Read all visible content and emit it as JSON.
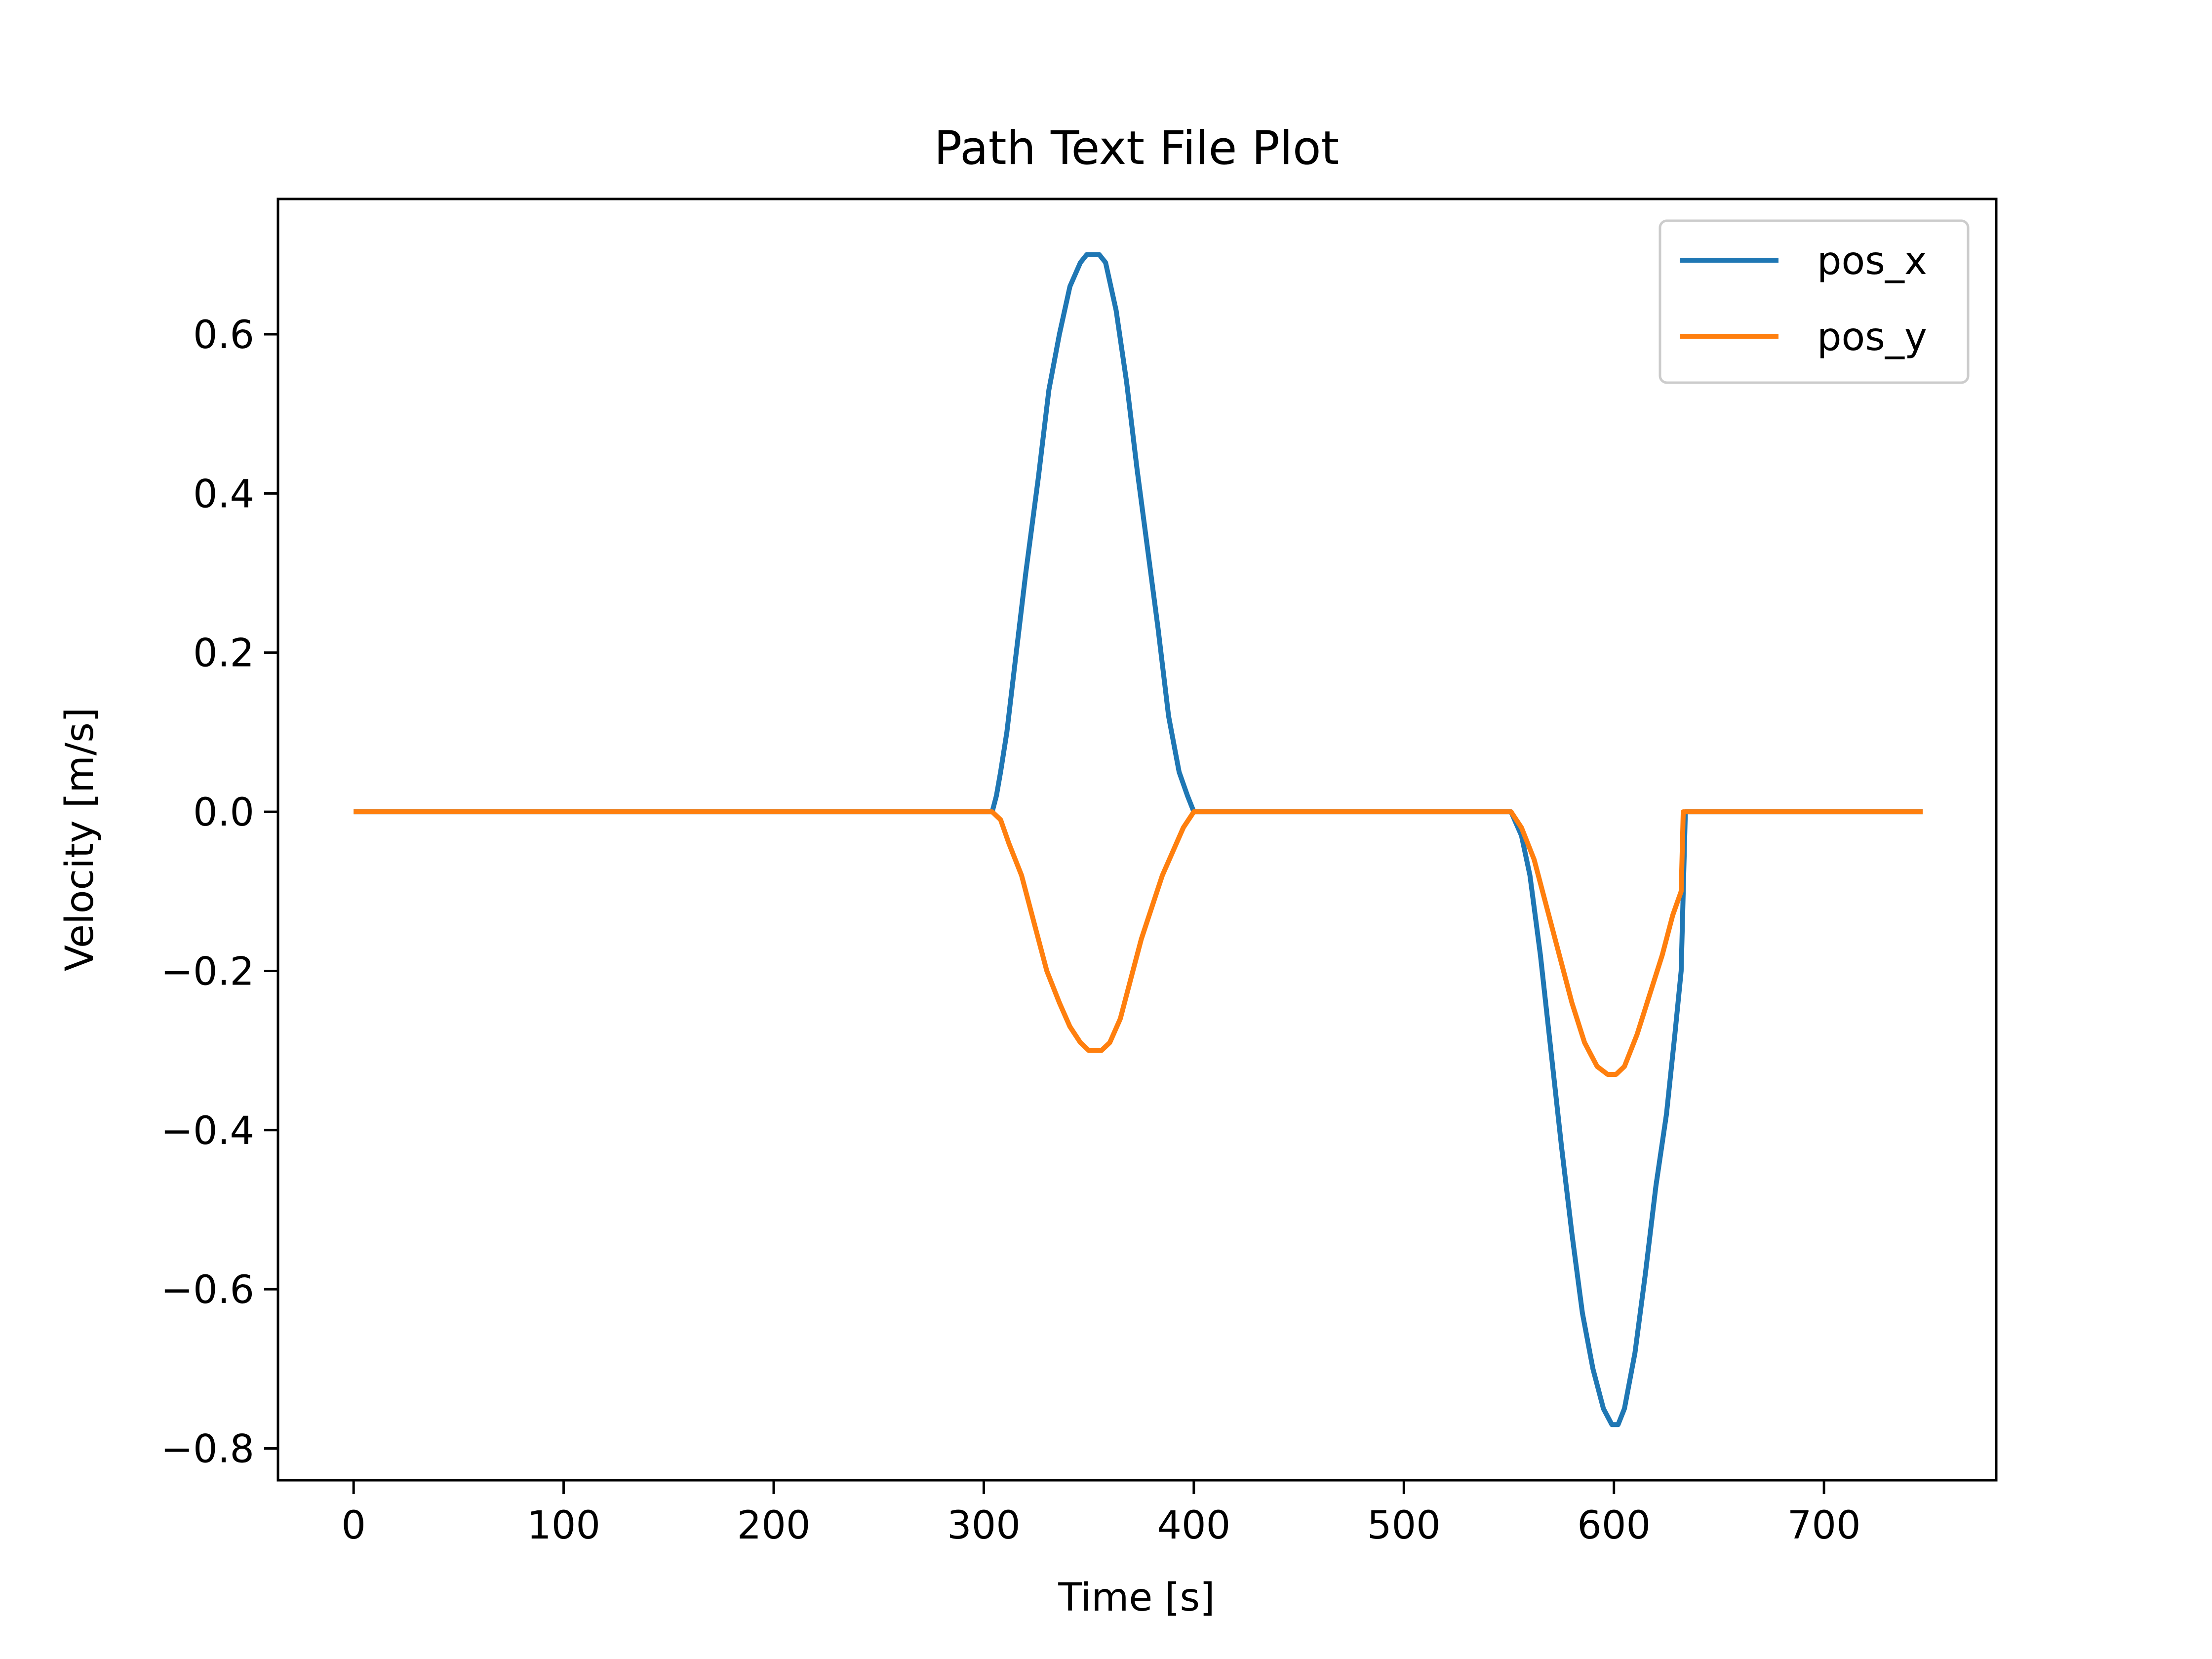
{
  "chart_data": {
    "type": "line",
    "title": "Path Text File Plot",
    "xlabel": "Time [s]",
    "ylabel": "Velocity [m/s]",
    "xlim": [
      -36,
      782
    ],
    "ylim": [
      -0.84,
      0.77
    ],
    "xticks": [
      0,
      100,
      200,
      300,
      400,
      500,
      600,
      700
    ],
    "xtick_labels": [
      "0",
      "100",
      "200",
      "300",
      "400",
      "500",
      "600",
      "700"
    ],
    "yticks": [
      0.6,
      0.4,
      0.2,
      0.0,
      -0.2,
      -0.4,
      -0.6,
      -0.8
    ],
    "ytick_labels": [
      "0.6",
      "0.4",
      "0.2",
      "0.0",
      "−0.2",
      "−0.4",
      "−0.6",
      "−0.8"
    ],
    "grid": false,
    "legend_position": "top-right",
    "series": [
      {
        "name": "pos_x",
        "color": "#1f77b4",
        "points": [
          [
            0,
            0.0
          ],
          [
            304,
            0.0
          ],
          [
            306,
            0.02
          ],
          [
            308,
            0.05
          ],
          [
            311,
            0.1
          ],
          [
            315,
            0.19
          ],
          [
            320,
            0.3
          ],
          [
            326,
            0.42
          ],
          [
            331,
            0.53
          ],
          [
            336,
            0.6
          ],
          [
            341,
            0.66
          ],
          [
            346,
            0.69
          ],
          [
            349,
            0.7
          ],
          [
            355,
            0.7
          ],
          [
            358,
            0.69
          ],
          [
            363,
            0.63
          ],
          [
            368,
            0.54
          ],
          [
            373,
            0.43
          ],
          [
            378,
            0.33
          ],
          [
            383,
            0.23
          ],
          [
            388,
            0.12
          ],
          [
            393,
            0.05
          ],
          [
            397,
            0.02
          ],
          [
            400,
            0.0
          ],
          [
            551,
            0.0
          ],
          [
            556,
            -0.03
          ],
          [
            560,
            -0.08
          ],
          [
            565,
            -0.18
          ],
          [
            570,
            -0.3
          ],
          [
            575,
            -0.42
          ],
          [
            580,
            -0.53
          ],
          [
            585,
            -0.63
          ],
          [
            590,
            -0.7
          ],
          [
            595,
            -0.75
          ],
          [
            599,
            -0.77
          ],
          [
            602,
            -0.77
          ],
          [
            605,
            -0.75
          ],
          [
            610,
            -0.68
          ],
          [
            615,
            -0.58
          ],
          [
            620,
            -0.47
          ],
          [
            625,
            -0.38
          ],
          [
            629,
            -0.28
          ],
          [
            632,
            -0.2
          ],
          [
            633,
            -0.1
          ],
          [
            634,
            0.0
          ],
          [
            747,
            0.0
          ]
        ]
      },
      {
        "name": "pos_y",
        "color": "#ff7f0e",
        "points": [
          [
            0,
            0.0
          ],
          [
            304,
            0.0
          ],
          [
            308,
            -0.01
          ],
          [
            312,
            -0.04
          ],
          [
            318,
            -0.08
          ],
          [
            324,
            -0.14
          ],
          [
            330,
            -0.2
          ],
          [
            336,
            -0.24
          ],
          [
            341,
            -0.27
          ],
          [
            346,
            -0.29
          ],
          [
            350,
            -0.3
          ],
          [
            356,
            -0.3
          ],
          [
            360,
            -0.29
          ],
          [
            365,
            -0.26
          ],
          [
            370,
            -0.21
          ],
          [
            375,
            -0.16
          ],
          [
            380,
            -0.12
          ],
          [
            385,
            -0.08
          ],
          [
            390,
            -0.05
          ],
          [
            395,
            -0.02
          ],
          [
            400,
            0.0
          ],
          [
            551,
            0.0
          ],
          [
            556,
            -0.02
          ],
          [
            562,
            -0.06
          ],
          [
            568,
            -0.12
          ],
          [
            574,
            -0.18
          ],
          [
            580,
            -0.24
          ],
          [
            586,
            -0.29
          ],
          [
            592,
            -0.32
          ],
          [
            597,
            -0.33
          ],
          [
            601,
            -0.33
          ],
          [
            605,
            -0.32
          ],
          [
            611,
            -0.28
          ],
          [
            617,
            -0.23
          ],
          [
            623,
            -0.18
          ],
          [
            628,
            -0.13
          ],
          [
            632,
            -0.1
          ],
          [
            633,
            0.0
          ],
          [
            747,
            0.0
          ]
        ]
      }
    ]
  }
}
